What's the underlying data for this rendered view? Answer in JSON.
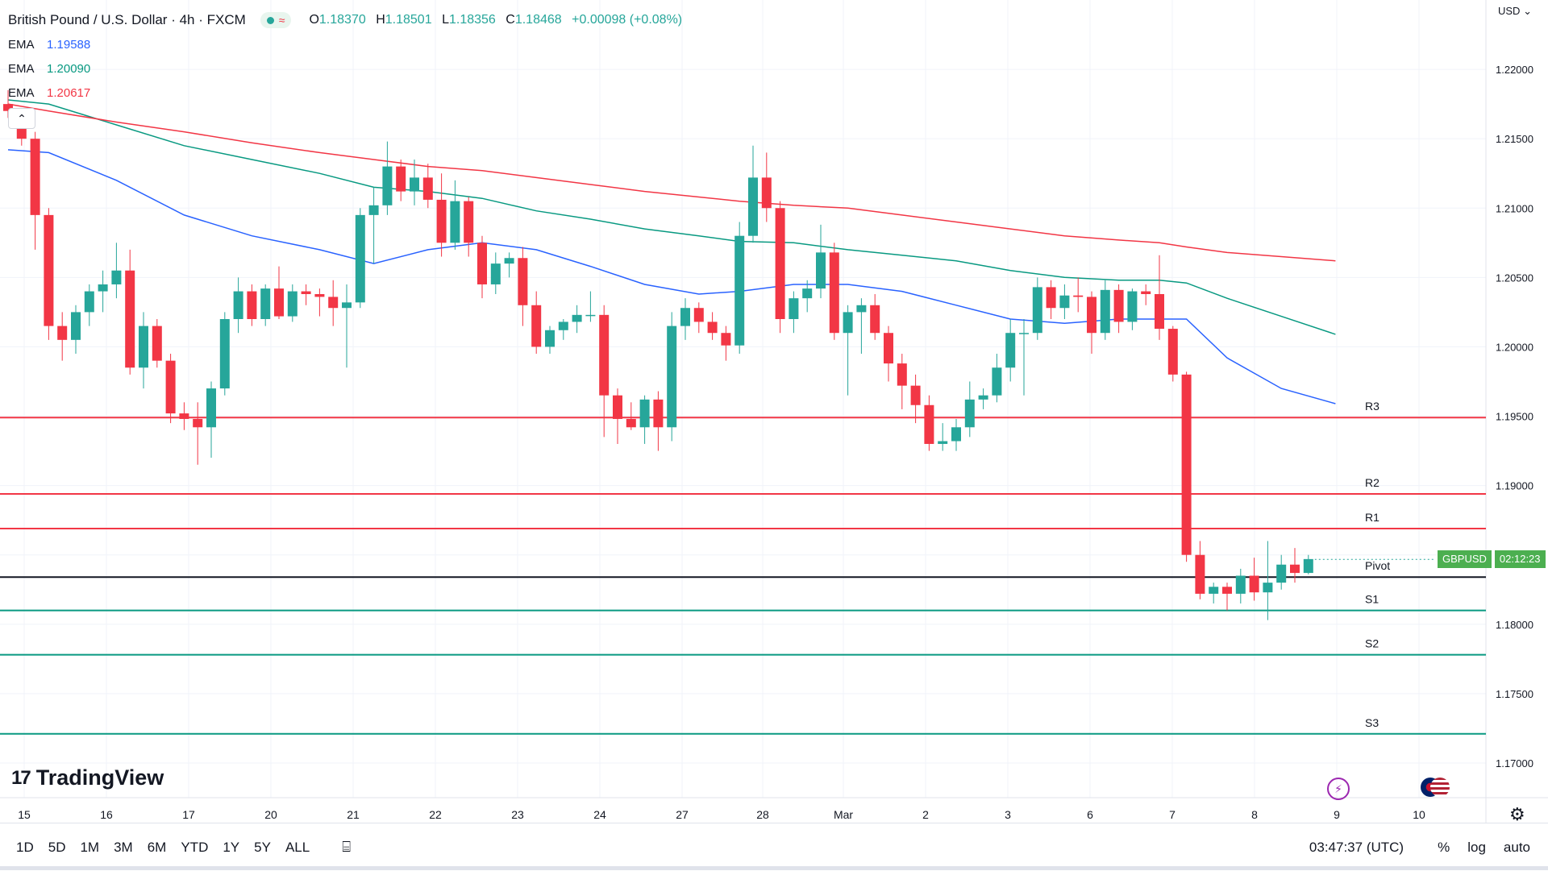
{
  "header": {
    "symbol_title": "British Pound / U.S. Dollar · 4h · FXCM",
    "ohlc": {
      "o_label": "O",
      "o": "1.18370",
      "h_label": "H",
      "h": "1.18501",
      "l_label": "L",
      "l": "1.18356",
      "c_label": "C",
      "c": "1.18468",
      "change": "+0.00098 (+0.08%)"
    }
  },
  "indicators": [
    {
      "name": "EMA",
      "value": "1.19588",
      "color": "#2962ff"
    },
    {
      "name": "EMA",
      "value": "1.20090",
      "color": "#089981"
    },
    {
      "name": "EMA",
      "value": "1.20617",
      "color": "#f23645"
    }
  ],
  "currency_menu": "USD",
  "price_tag": {
    "symbol": "GBPUSD",
    "countdown": "02:12:23"
  },
  "logo_text": "TradingView",
  "bottom_toolbar": {
    "timeframes": [
      "1D",
      "5D",
      "1M",
      "3M",
      "6M",
      "YTD",
      "1Y",
      "5Y",
      "ALL"
    ],
    "clock": "03:47:37 (UTC)",
    "percent": "%",
    "log": "log",
    "auto": "auto"
  },
  "chart_data": {
    "type": "candlestick",
    "title": "British Pound / U.S. Dollar · 4h · FXCM",
    "y_range": [
      1.1675,
      1.225
    ],
    "y_ticks": [
      "1.17000",
      "1.17500",
      "1.18000",
      "1.18500",
      "1.19000",
      "1.19500",
      "1.20000",
      "1.20500",
      "1.21000",
      "1.21500",
      "1.22000"
    ],
    "x_ticks": [
      "15",
      "16",
      "17",
      "20",
      "21",
      "22",
      "23",
      "24",
      "27",
      "28",
      "Mar",
      "2",
      "3",
      "6",
      "7",
      "8",
      "9",
      "10"
    ],
    "candles": [
      {
        "o": 1.2175,
        "h": 1.2185,
        "l": 1.2165,
        "c": 1.217
      },
      {
        "o": 1.2165,
        "h": 1.217,
        "l": 1.2145,
        "c": 1.215
      },
      {
        "o": 1.215,
        "h": 1.2155,
        "l": 1.207,
        "c": 1.2095
      },
      {
        "o": 1.2095,
        "h": 1.21,
        "l": 1.2005,
        "c": 1.2015
      },
      {
        "o": 1.2015,
        "h": 1.2025,
        "l": 1.199,
        "c": 1.2005
      },
      {
        "o": 1.2005,
        "h": 1.203,
        "l": 1.1995,
        "c": 1.2025
      },
      {
        "o": 1.2025,
        "h": 1.2045,
        "l": 1.2015,
        "c": 1.204
      },
      {
        "o": 1.204,
        "h": 1.2055,
        "l": 1.2025,
        "c": 1.2045
      },
      {
        "o": 1.2045,
        "h": 1.2075,
        "l": 1.2035,
        "c": 1.2055
      },
      {
        "o": 1.2055,
        "h": 1.207,
        "l": 1.198,
        "c": 1.1985
      },
      {
        "o": 1.1985,
        "h": 1.2025,
        "l": 1.197,
        "c": 1.2015
      },
      {
        "o": 1.2015,
        "h": 1.202,
        "l": 1.1985,
        "c": 1.199
      },
      {
        "o": 1.199,
        "h": 1.1995,
        "l": 1.1945,
        "c": 1.1952
      },
      {
        "o": 1.1952,
        "h": 1.196,
        "l": 1.194,
        "c": 1.1948
      },
      {
        "o": 1.1948,
        "h": 1.196,
        "l": 1.1915,
        "c": 1.1942
      },
      {
        "o": 1.1942,
        "h": 1.1975,
        "l": 1.192,
        "c": 1.197
      },
      {
        "o": 1.197,
        "h": 1.2025,
        "l": 1.1965,
        "c": 1.202
      },
      {
        "o": 1.202,
        "h": 1.205,
        "l": 1.201,
        "c": 1.204
      },
      {
        "o": 1.204,
        "h": 1.2045,
        "l": 1.2015,
        "c": 1.202
      },
      {
        "o": 1.202,
        "h": 1.2045,
        "l": 1.2015,
        "c": 1.2042
      },
      {
        "o": 1.2042,
        "h": 1.2058,
        "l": 1.202,
        "c": 1.2022
      },
      {
        "o": 1.2022,
        "h": 1.2045,
        "l": 1.2018,
        "c": 1.204
      },
      {
        "o": 1.204,
        "h": 1.2045,
        "l": 1.203,
        "c": 1.2038
      },
      {
        "o": 1.2038,
        "h": 1.2042,
        "l": 1.2022,
        "c": 1.2036
      },
      {
        "o": 1.2036,
        "h": 1.2048,
        "l": 1.2015,
        "c": 1.2028
      },
      {
        "o": 1.2028,
        "h": 1.2045,
        "l": 1.1985,
        "c": 1.2032
      },
      {
        "o": 1.2032,
        "h": 1.21,
        "l": 1.2028,
        "c": 1.2095
      },
      {
        "o": 1.2095,
        "h": 1.2115,
        "l": 1.206,
        "c": 1.2102
      },
      {
        "o": 1.2102,
        "h": 1.2148,
        "l": 1.2095,
        "c": 1.213
      },
      {
        "o": 1.213,
        "h": 1.2135,
        "l": 1.2105,
        "c": 1.2112
      },
      {
        "o": 1.2112,
        "h": 1.2135,
        "l": 1.2102,
        "c": 1.2122
      },
      {
        "o": 1.2122,
        "h": 1.2132,
        "l": 1.21,
        "c": 1.2106
      },
      {
        "o": 1.2106,
        "h": 1.2125,
        "l": 1.2065,
        "c": 1.2075
      },
      {
        "o": 1.2075,
        "h": 1.212,
        "l": 1.207,
        "c": 1.2105
      },
      {
        "o": 1.2105,
        "h": 1.2108,
        "l": 1.2065,
        "c": 1.2075
      },
      {
        "o": 1.2075,
        "h": 1.208,
        "l": 1.2035,
        "c": 1.2045
      },
      {
        "o": 1.2045,
        "h": 1.2068,
        "l": 1.2038,
        "c": 1.206
      },
      {
        "o": 1.206,
        "h": 1.2068,
        "l": 1.205,
        "c": 1.2064
      },
      {
        "o": 1.2064,
        "h": 1.2072,
        "l": 1.2015,
        "c": 1.203
      },
      {
        "o": 1.203,
        "h": 1.204,
        "l": 1.1995,
        "c": 1.2
      },
      {
        "o": 1.2,
        "h": 1.2015,
        "l": 1.1995,
        "c": 1.2012
      },
      {
        "o": 1.2012,
        "h": 1.202,
        "l": 1.2005,
        "c": 1.2018
      },
      {
        "o": 1.2018,
        "h": 1.203,
        "l": 1.201,
        "c": 1.2023
      },
      {
        "o": 1.2023,
        "h": 1.204,
        "l": 1.2018,
        "c": 1.2023
      },
      {
        "o": 1.2023,
        "h": 1.203,
        "l": 1.1935,
        "c": 1.1965
      },
      {
        "o": 1.1965,
        "h": 1.197,
        "l": 1.193,
        "c": 1.1948
      },
      {
        "o": 1.1948,
        "h": 1.196,
        "l": 1.194,
        "c": 1.1942
      },
      {
        "o": 1.1942,
        "h": 1.1965,
        "l": 1.193,
        "c": 1.1962
      },
      {
        "o": 1.1962,
        "h": 1.1968,
        "l": 1.1925,
        "c": 1.1942
      },
      {
        "o": 1.1942,
        "h": 1.2025,
        "l": 1.1932,
        "c": 1.2015
      },
      {
        "o": 1.2015,
        "h": 1.2035,
        "l": 1.2005,
        "c": 1.2028
      },
      {
        "o": 1.2028,
        "h": 1.2032,
        "l": 1.201,
        "c": 1.2018
      },
      {
        "o": 1.2018,
        "h": 1.2025,
        "l": 1.2005,
        "c": 1.201
      },
      {
        "o": 1.201,
        "h": 1.2015,
        "l": 1.199,
        "c": 1.2001
      },
      {
        "o": 1.2001,
        "h": 1.209,
        "l": 1.1995,
        "c": 1.208
      },
      {
        "o": 1.208,
        "h": 1.2145,
        "l": 1.2075,
        "c": 1.2122
      },
      {
        "o": 1.2122,
        "h": 1.214,
        "l": 1.209,
        "c": 1.21
      },
      {
        "o": 1.21,
        "h": 1.2105,
        "l": 1.201,
        "c": 1.202
      },
      {
        "o": 1.202,
        "h": 1.204,
        "l": 1.201,
        "c": 1.2035
      },
      {
        "o": 1.2035,
        "h": 1.2048,
        "l": 1.2025,
        "c": 1.2042
      },
      {
        "o": 1.2042,
        "h": 1.2088,
        "l": 1.2035,
        "c": 1.2068
      },
      {
        "o": 1.2068,
        "h": 1.2075,
        "l": 1.2005,
        "c": 1.201
      },
      {
        "o": 1.201,
        "h": 1.203,
        "l": 1.1965,
        "c": 1.2025
      },
      {
        "o": 1.2025,
        "h": 1.2035,
        "l": 1.1995,
        "c": 1.203
      },
      {
        "o": 1.203,
        "h": 1.2038,
        "l": 1.2005,
        "c": 1.201
      },
      {
        "o": 1.201,
        "h": 1.2015,
        "l": 1.1975,
        "c": 1.1988
      },
      {
        "o": 1.1988,
        "h": 1.1995,
        "l": 1.1955,
        "c": 1.1972
      },
      {
        "o": 1.1972,
        "h": 1.198,
        "l": 1.1945,
        "c": 1.1958
      },
      {
        "o": 1.1958,
        "h": 1.1965,
        "l": 1.1925,
        "c": 1.193
      },
      {
        "o": 1.193,
        "h": 1.1945,
        "l": 1.1925,
        "c": 1.1932
      },
      {
        "o": 1.1932,
        "h": 1.1948,
        "l": 1.1925,
        "c": 1.1942
      },
      {
        "o": 1.1942,
        "h": 1.1975,
        "l": 1.1935,
        "c": 1.1962
      },
      {
        "o": 1.1962,
        "h": 1.197,
        "l": 1.1955,
        "c": 1.1965
      },
      {
        "o": 1.1965,
        "h": 1.1995,
        "l": 1.196,
        "c": 1.1985
      },
      {
        "o": 1.1985,
        "h": 1.202,
        "l": 1.1975,
        "c": 1.201
      },
      {
        "o": 1.201,
        "h": 1.202,
        "l": 1.1965,
        "c": 1.201
      },
      {
        "o": 1.201,
        "h": 1.205,
        "l": 1.2005,
        "c": 1.2043
      },
      {
        "o": 1.2043,
        "h": 1.2048,
        "l": 1.202,
        "c": 1.2028
      },
      {
        "o": 1.2028,
        "h": 1.2045,
        "l": 1.202,
        "c": 1.2037
      },
      {
        "o": 1.2037,
        "h": 1.205,
        "l": 1.2025,
        "c": 1.2036
      },
      {
        "o": 1.2036,
        "h": 1.204,
        "l": 1.1995,
        "c": 1.201
      },
      {
        "o": 1.201,
        "h": 1.2048,
        "l": 1.2005,
        "c": 1.2041
      },
      {
        "o": 1.2041,
        "h": 1.2045,
        "l": 1.201,
        "c": 1.2018
      },
      {
        "o": 1.2018,
        "h": 1.2042,
        "l": 1.2012,
        "c": 1.204
      },
      {
        "o": 1.204,
        "h": 1.2045,
        "l": 1.203,
        "c": 1.2038
      },
      {
        "o": 1.2038,
        "h": 1.2066,
        "l": 1.2005,
        "c": 1.2013
      },
      {
        "o": 1.2013,
        "h": 1.2015,
        "l": 1.1975,
        "c": 1.198
      },
      {
        "o": 1.198,
        "h": 1.1982,
        "l": 1.1845,
        "c": 1.185
      },
      {
        "o": 1.185,
        "h": 1.186,
        "l": 1.1818,
        "c": 1.1822
      },
      {
        "o": 1.1822,
        "h": 1.183,
        "l": 1.1815,
        "c": 1.1827
      },
      {
        "o": 1.1827,
        "h": 1.183,
        "l": 1.181,
        "c": 1.1822
      },
      {
        "o": 1.1822,
        "h": 1.184,
        "l": 1.1815,
        "c": 1.1835
      },
      {
        "o": 1.1835,
        "h": 1.1848,
        "l": 1.1817,
        "c": 1.1823
      },
      {
        "o": 1.1823,
        "h": 1.186,
        "l": 1.1803,
        "c": 1.183
      },
      {
        "o": 1.183,
        "h": 1.185,
        "l": 1.1825,
        "c": 1.1843
      },
      {
        "o": 1.1843,
        "h": 1.1855,
        "l": 1.183,
        "c": 1.1837
      },
      {
        "o": 1.1837,
        "h": 1.185,
        "l": 1.1836,
        "c": 1.1847
      }
    ],
    "ema_series": [
      {
        "name": "EMA",
        "color": "#2962ff",
        "points": [
          [
            0,
            1.2142
          ],
          [
            3,
            1.214
          ],
          [
            8,
            1.212
          ],
          [
            13,
            1.2095
          ],
          [
            18,
            1.208
          ],
          [
            23,
            1.207
          ],
          [
            27,
            1.206
          ],
          [
            31,
            1.207
          ],
          [
            35,
            1.2075
          ],
          [
            39,
            1.207
          ],
          [
            43,
            1.2058
          ],
          [
            47,
            1.2045
          ],
          [
            51,
            1.2038
          ],
          [
            54,
            1.204
          ],
          [
            58,
            1.2045
          ],
          [
            62,
            1.2045
          ],
          [
            66,
            1.204
          ],
          [
            70,
            1.203
          ],
          [
            74,
            1.202
          ],
          [
            78,
            1.2017
          ],
          [
            82,
            1.202
          ],
          [
            85,
            1.202
          ],
          [
            87,
            1.202
          ],
          [
            90,
            1.1992
          ],
          [
            94,
            1.197
          ],
          [
            98,
            1.1959
          ]
        ]
      },
      {
        "name": "EMA",
        "color": "#089981",
        "points": [
          [
            0,
            1.2178
          ],
          [
            3,
            1.2175
          ],
          [
            8,
            1.216
          ],
          [
            13,
            1.2145
          ],
          [
            18,
            1.2135
          ],
          [
            23,
            1.2125
          ],
          [
            27,
            1.2115
          ],
          [
            31,
            1.2112
          ],
          [
            35,
            1.2107
          ],
          [
            39,
            1.2098
          ],
          [
            43,
            1.2092
          ],
          [
            47,
            1.2085
          ],
          [
            51,
            1.208
          ],
          [
            54,
            1.2076
          ],
          [
            58,
            1.2075
          ],
          [
            62,
            1.207
          ],
          [
            66,
            1.2066
          ],
          [
            70,
            1.2062
          ],
          [
            74,
            1.2055
          ],
          [
            78,
            1.205
          ],
          [
            82,
            1.2048
          ],
          [
            85,
            1.2048
          ],
          [
            87,
            1.2046
          ],
          [
            90,
            1.2035
          ],
          [
            94,
            1.2022
          ],
          [
            98,
            1.2009
          ]
        ]
      },
      {
        "name": "EMA",
        "color": "#f23645",
        "points": [
          [
            0,
            1.2175
          ],
          [
            3,
            1.217
          ],
          [
            8,
            1.2162
          ],
          [
            13,
            1.2155
          ],
          [
            18,
            1.2147
          ],
          [
            23,
            1.214
          ],
          [
            27,
            1.2135
          ],
          [
            31,
            1.213
          ],
          [
            35,
            1.2127
          ],
          [
            39,
            1.2122
          ],
          [
            43,
            1.2117
          ],
          [
            47,
            1.2112
          ],
          [
            51,
            1.2108
          ],
          [
            54,
            1.2105
          ],
          [
            58,
            1.2102
          ],
          [
            62,
            1.21
          ],
          [
            66,
            1.2095
          ],
          [
            70,
            1.209
          ],
          [
            74,
            1.2085
          ],
          [
            78,
            1.208
          ],
          [
            82,
            1.2077
          ],
          [
            85,
            1.2075
          ],
          [
            87,
            1.2072
          ],
          [
            90,
            1.2068
          ],
          [
            94,
            1.2065
          ],
          [
            98,
            1.2062
          ]
        ]
      }
    ],
    "pivot_levels": [
      {
        "label": "R3",
        "price": 1.1949,
        "color": "#f23645"
      },
      {
        "label": "R2",
        "price": 1.1894,
        "color": "#f23645"
      },
      {
        "label": "R1",
        "price": 1.1869,
        "color": "#f23645"
      },
      {
        "label": "Pivot",
        "price": 1.1834,
        "color": "#131722"
      },
      {
        "label": "S1",
        "price": 1.181,
        "color": "#089981"
      },
      {
        "label": "S2",
        "price": 1.1778,
        "color": "#089981"
      },
      {
        "label": "S3",
        "price": 1.1721,
        "color": "#089981"
      }
    ],
    "last_price": 1.18468,
    "colors": {
      "up": "#26a69a",
      "down": "#f23645",
      "grid": "#f0f3fa",
      "axis_text": "#131722"
    }
  }
}
